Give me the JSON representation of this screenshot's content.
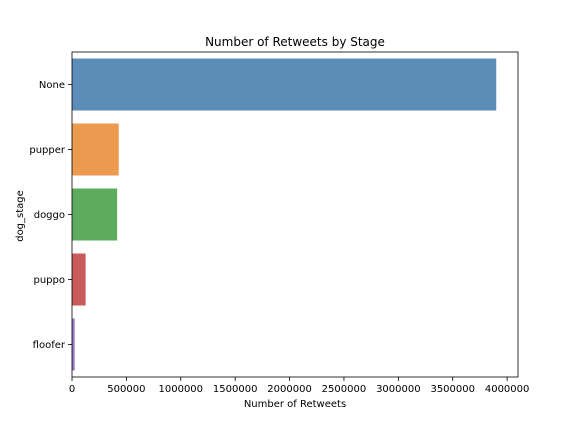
{
  "chart_data": {
    "type": "bar",
    "orientation": "horizontal",
    "title": "Number of Retweets by Stage",
    "xlabel": "Number of Retweets",
    "ylabel": "dog_stage",
    "categories": [
      "None",
      "pupper",
      "doggo",
      "puppo",
      "floofer"
    ],
    "values": [
      3900000,
      430000,
      415000,
      125000,
      25000
    ],
    "colors": [
      "#5b8db8",
      "#eb9a50",
      "#5dab5d",
      "#c95a5a",
      "#9a7cc4"
    ],
    "xlim": [
      0,
      4100000
    ],
    "xticks": [
      0,
      500000,
      1000000,
      1500000,
      2000000,
      2500000,
      3000000,
      3500000,
      4000000
    ],
    "xtick_labels": [
      "0",
      "500000",
      "1000000",
      "1500000",
      "2000000",
      "2500000",
      "3000000",
      "3500000",
      "4000000"
    ],
    "grid": false,
    "legend": "none"
  }
}
